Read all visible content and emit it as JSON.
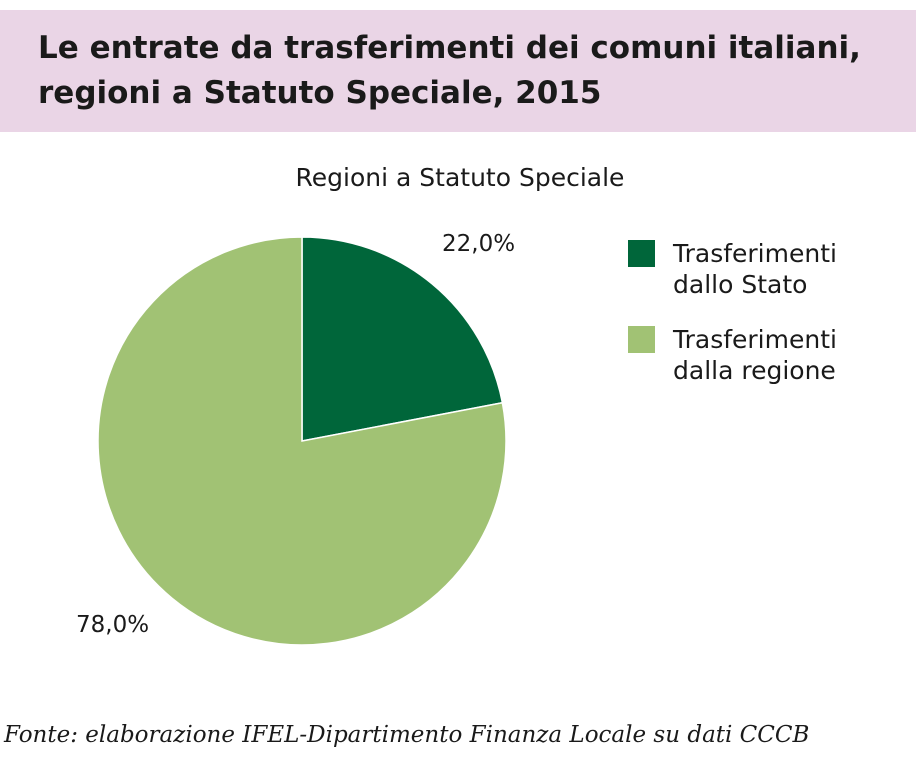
{
  "header": {
    "title": "Le entrate da trasferimenti dei comuni italiani, regioni a Statuto Speciale, 2015"
  },
  "chart_data": {
    "type": "pie",
    "title": "Regioni a Statuto Speciale",
    "slices": [
      {
        "label": "Trasferimenti dallo Stato",
        "value": 22.0,
        "value_label": "22,0%",
        "color": "#00663a"
      },
      {
        "label": "Trasferimenti dalla regione",
        "value": 78.0,
        "value_label": "78,0%",
        "color": "#a1c274"
      }
    ],
    "start_angle": "12 o'clock",
    "direction": "clockwise",
    "legend_position": "right"
  },
  "footer": {
    "source": "Fonte: elaborazione IFEL-Dipartimento Finanza Locale su dati CCCB"
  }
}
